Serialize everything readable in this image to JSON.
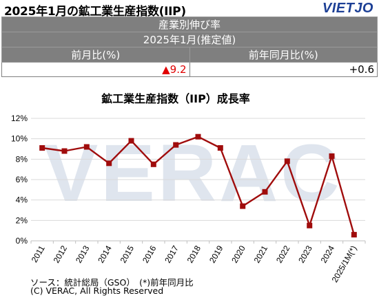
{
  "header": {
    "title": "2025年1月の鉱工業生産指数(IIP)",
    "logo": "VIETJO"
  },
  "table": {
    "row1": "産業別伸び率",
    "row2": "2025年1月(推定値)",
    "col1_header": "前月比(%)",
    "col2_header": "前年同月比(%)",
    "col1_value": "▲9.2",
    "col2_value": "+0.6"
  },
  "watermark": "VERAC",
  "chart_data": {
    "type": "line",
    "title": "鉱工業生産指数（IIP）成長率",
    "categories": [
      "2011",
      "2012",
      "2013",
      "2014",
      "2015",
      "2016",
      "2017",
      "2018",
      "2019",
      "2020",
      "2021",
      "2022",
      "2023",
      "2024",
      "2025/1M(*)"
    ],
    "series": [
      {
        "values": [
          9.1,
          8.8,
          9.2,
          7.6,
          9.8,
          7.5,
          9.4,
          10.2,
          9.1,
          3.4,
          4.8,
          7.8,
          1.5,
          8.3,
          0.6
        ],
        "color": "#a00c0c"
      }
    ],
    "ylim": [
      0,
      12
    ],
    "yticks": [
      "0%",
      "2%",
      "4%",
      "6%",
      "8%",
      "10%",
      "12%"
    ],
    "grid": true,
    "xlabel": "",
    "ylabel": ""
  },
  "footer": {
    "source": "ソース：統計総局（GSO）　(*)前年同月比",
    "copyright": "(C) VERAC, All Rights Reserved"
  }
}
